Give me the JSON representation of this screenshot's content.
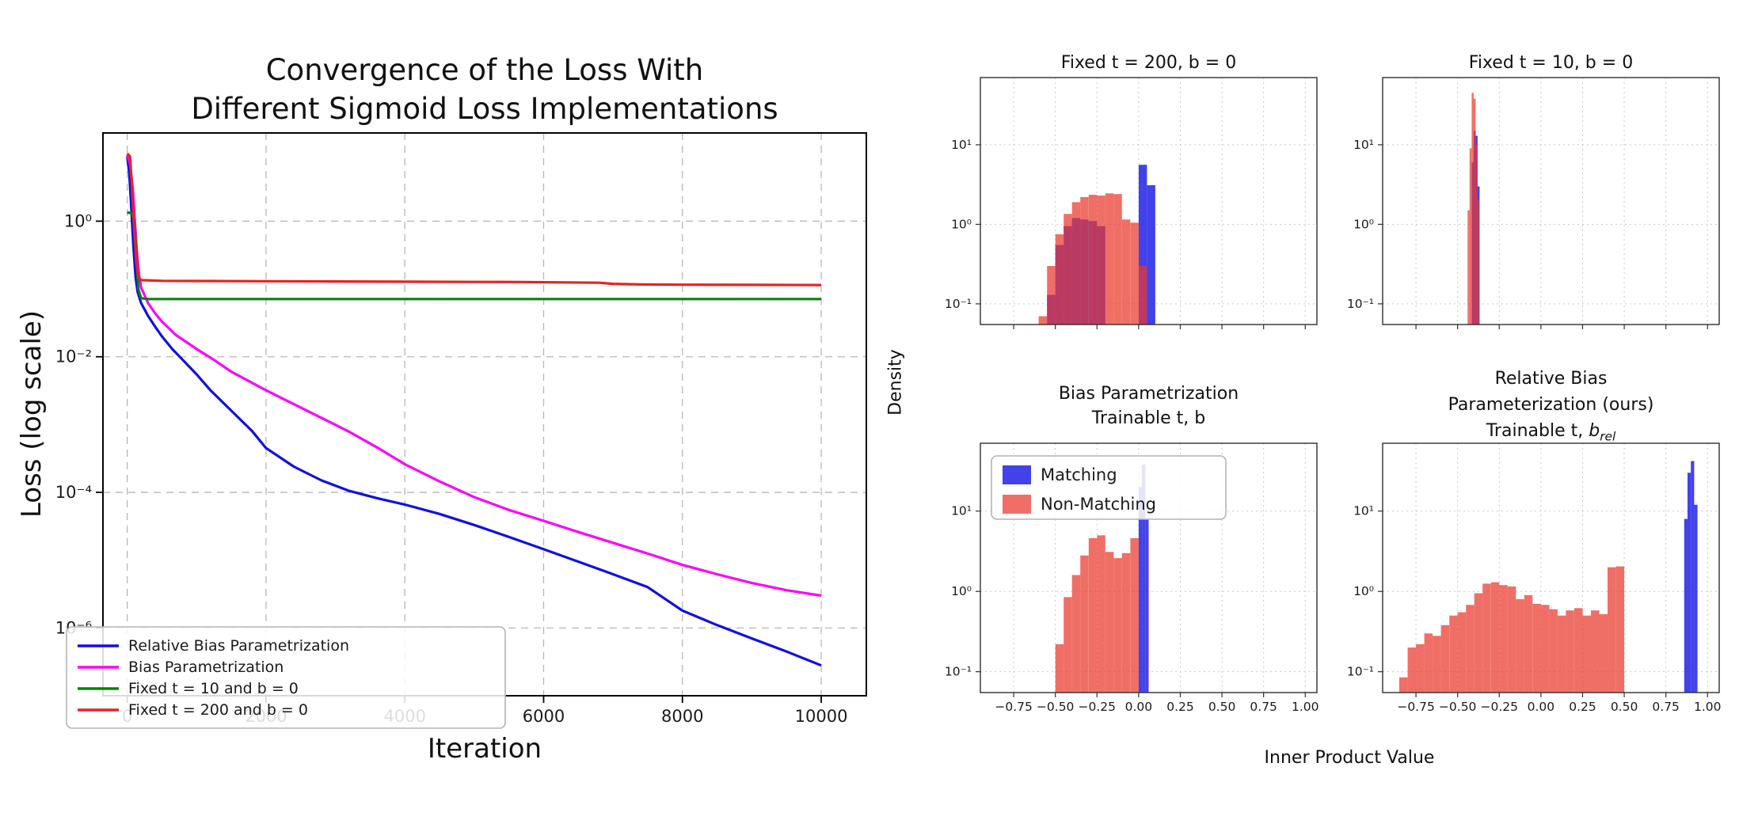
{
  "right_figure": {
    "ylabel": "Density",
    "xlabel": "Inner Product Value"
  },
  "chart_data": [
    {
      "type": "line",
      "title_lines": [
        "Convergence of the Loss With",
        "Different Sigmoid Loss Implementations"
      ],
      "xlabel": "Iteration",
      "ylabel": "Loss (log scale)",
      "xlim": [
        -350,
        10650
      ],
      "ylim": [
        1e-07,
        20
      ],
      "yscale": "log",
      "grid": "dashed",
      "legend": true,
      "legend_loc": "lower left",
      "xticks": [
        {
          "v": 0,
          "label": "0"
        },
        {
          "v": 2000,
          "label": "2000"
        },
        {
          "v": 4000,
          "label": "4000"
        },
        {
          "v": 6000,
          "label": "6000"
        },
        {
          "v": 8000,
          "label": "8000"
        },
        {
          "v": 10000,
          "label": "10000"
        }
      ],
      "yticks": [
        {
          "v": 1,
          "label": "10⁰"
        },
        {
          "v": 0.01,
          "label": "10⁻²"
        },
        {
          "v": 0.0001,
          "label": "10⁻⁴"
        },
        {
          "v": 1e-06,
          "label": "10⁻⁶"
        }
      ],
      "series": [
        {
          "name": "Relative Bias Parametrization",
          "color": "#0f0fe8",
          "points": [
            [
              0,
              9
            ],
            [
              30,
              5
            ],
            [
              60,
              1.5
            ],
            [
              90,
              0.4
            ],
            [
              120,
              0.15
            ],
            [
              150,
              0.09
            ],
            [
              200,
              0.062
            ],
            [
              300,
              0.04
            ],
            [
              400,
              0.028
            ],
            [
              500,
              0.02
            ],
            [
              650,
              0.013
            ],
            [
              800,
              0.009
            ],
            [
              1000,
              0.0055
            ],
            [
              1200,
              0.0032
            ],
            [
              1500,
              0.0016
            ],
            [
              1800,
              0.0008
            ],
            [
              2000,
              0.00045
            ],
            [
              2400,
              0.00024
            ],
            [
              2800,
              0.00015
            ],
            [
              3200,
              0.000105
            ],
            [
              3600,
              8.2e-05
            ],
            [
              4000,
              6.6e-05
            ],
            [
              4500,
              4.8e-05
            ],
            [
              5000,
              3.3e-05
            ],
            [
              5500,
              2.2e-05
            ],
            [
              6000,
              1.45e-05
            ],
            [
              6500,
              9.5e-06
            ],
            [
              7000,
              6.2e-06
            ],
            [
              7500,
              4e-06
            ],
            [
              8000,
              1.8e-06
            ],
            [
              8500,
              1.1e-06
            ],
            [
              9000,
              7e-07
            ],
            [
              9500,
              4.5e-07
            ],
            [
              10000,
              2.8e-07
            ]
          ]
        },
        {
          "name": "Bias Parametrization",
          "color": "#fb02fb",
          "points": [
            [
              0,
              9.5
            ],
            [
              40,
              7
            ],
            [
              80,
              3
            ],
            [
              110,
              1
            ],
            [
              140,
              0.35
            ],
            [
              170,
              0.16
            ],
            [
              200,
              0.105
            ],
            [
              300,
              0.062
            ],
            [
              400,
              0.044
            ],
            [
              500,
              0.033
            ],
            [
              700,
              0.021
            ],
            [
              1000,
              0.013
            ],
            [
              1250,
              0.009
            ],
            [
              1500,
              0.006
            ],
            [
              1750,
              0.0044
            ],
            [
              2000,
              0.0032
            ],
            [
              2400,
              0.002
            ],
            [
              2800,
              0.00125
            ],
            [
              3200,
              0.00078
            ],
            [
              3600,
              0.00046
            ],
            [
              4000,
              0.00026
            ],
            [
              4500,
              0.000145
            ],
            [
              5000,
              8.5e-05
            ],
            [
              5500,
              5.5e-05
            ],
            [
              6000,
              3.8e-05
            ],
            [
              6500,
              2.6e-05
            ],
            [
              7000,
              1.8e-05
            ],
            [
              7500,
              1.25e-05
            ],
            [
              8000,
              8.5e-06
            ],
            [
              8500,
              6.2e-06
            ],
            [
              9000,
              4.6e-06
            ],
            [
              9500,
              3.6e-06
            ],
            [
              10000,
              3e-06
            ]
          ]
        },
        {
          "name": "Fixed t = 10 and b = 0",
          "color": "#0b800b",
          "points": [
            [
              0,
              1.35
            ],
            [
              70,
              1.3
            ],
            [
              100,
              1.0
            ],
            [
              130,
              0.35
            ],
            [
              160,
              0.1
            ],
            [
              200,
              0.073
            ],
            [
              300,
              0.071
            ],
            [
              2000,
              0.071
            ],
            [
              5000,
              0.071
            ],
            [
              10000,
              0.071
            ]
          ]
        },
        {
          "name": "Fixed t = 200 and b = 0",
          "color": "#e52420",
          "points": [
            [
              0,
              10
            ],
            [
              40,
              9
            ],
            [
              70,
              3
            ],
            [
              100,
              0.8
            ],
            [
              130,
              0.25
            ],
            [
              160,
              0.15
            ],
            [
              200,
              0.135
            ],
            [
              500,
              0.132
            ],
            [
              1000,
              0.131
            ],
            [
              2000,
              0.13
            ],
            [
              3000,
              0.129
            ],
            [
              4000,
              0.128
            ],
            [
              5000,
              0.127
            ],
            [
              5700,
              0.1265
            ],
            [
              6300,
              0.125
            ],
            [
              6800,
              0.1235
            ],
            [
              7000,
              0.119
            ],
            [
              7400,
              0.1165
            ],
            [
              8000,
              0.1155
            ],
            [
              9000,
              0.115
            ],
            [
              10000,
              0.1145
            ]
          ]
        }
      ]
    },
    {
      "type": "histogram",
      "title_lines": [
        "Fixed t = 200, b = 0"
      ],
      "xlim": [
        -0.95,
        1.07
      ],
      "ylim": [
        0.055,
        70
      ],
      "yscale": "log",
      "show_xticklabels": false,
      "legend": false,
      "xticks": [
        {
          "v": -0.75,
          "label": "−0.75"
        },
        {
          "v": -0.5,
          "label": "−0.50"
        },
        {
          "v": -0.25,
          "label": "−0.25"
        },
        {
          "v": 0.0,
          "label": "0.00"
        },
        {
          "v": 0.25,
          "label": "0.25"
        },
        {
          "v": 0.5,
          "label": "0.50"
        },
        {
          "v": 0.75,
          "label": "0.75"
        },
        {
          "v": 1.0,
          "label": "1.00"
        }
      ],
      "yticks": [
        {
          "v": 0.1,
          "label": "10⁻¹"
        },
        {
          "v": 1,
          "label": "10⁰"
        },
        {
          "v": 10,
          "label": "10¹"
        }
      ],
      "series": [
        {
          "name": "Matching",
          "color": "rgba(25,25,230,0.82)",
          "bin_width": 0.05,
          "bars": [
            [
              -0.55,
              0.13
            ],
            [
              -0.5,
              0.55
            ],
            [
              -0.45,
              0.95
            ],
            [
              -0.4,
              1.2
            ],
            [
              -0.35,
              1.15
            ],
            [
              -0.3,
              1.1
            ],
            [
              -0.25,
              0.95
            ],
            [
              0.0,
              5.6
            ],
            [
              0.05,
              3.1
            ]
          ]
        },
        {
          "name": "Non-Matching",
          "color": "rgba(233,55,45,0.72)",
          "bin_width": 0.05,
          "bars": [
            [
              -0.6,
              0.07
            ],
            [
              -0.55,
              0.3
            ],
            [
              -0.5,
              0.75
            ],
            [
              -0.45,
              1.35
            ],
            [
              -0.4,
              1.9
            ],
            [
              -0.35,
              2.2
            ],
            [
              -0.3,
              2.35
            ],
            [
              -0.25,
              2.3
            ],
            [
              -0.2,
              2.45
            ],
            [
              -0.15,
              2.4
            ],
            [
              -0.1,
              1.15
            ],
            [
              -0.05,
              1.05
            ],
            [
              0.0,
              0.3
            ]
          ]
        }
      ]
    },
    {
      "type": "histogram",
      "title_lines": [
        "Fixed t = 10, b = 0"
      ],
      "xlim": [
        -0.95,
        1.07
      ],
      "ylim": [
        0.055,
        70
      ],
      "yscale": "log",
      "show_xticklabels": false,
      "legend": false,
      "xticks": [
        {
          "v": -0.75,
          "label": "−0.75"
        },
        {
          "v": -0.5,
          "label": "−0.50"
        },
        {
          "v": -0.25,
          "label": "−0.25"
        },
        {
          "v": 0.0,
          "label": "0.00"
        },
        {
          "v": 0.25,
          "label": "0.25"
        },
        {
          "v": 0.5,
          "label": "0.50"
        },
        {
          "v": 0.75,
          "label": "0.75"
        },
        {
          "v": 1.0,
          "label": "1.00"
        }
      ],
      "yticks": [
        {
          "v": 0.1,
          "label": "10⁻¹"
        },
        {
          "v": 1,
          "label": "10⁰"
        },
        {
          "v": 10,
          "label": "10¹"
        }
      ],
      "series": [
        {
          "name": "Matching",
          "color": "rgba(25,25,230,0.82)",
          "bin_width": 0.012,
          "bars": [
            [
              -0.416,
              6
            ],
            [
              -0.404,
              15
            ],
            [
              -0.392,
              13
            ],
            [
              -0.38,
              3
            ]
          ]
        },
        {
          "name": "Non-Matching",
          "color": "rgba(233,55,45,0.72)",
          "bin_width": 0.012,
          "bars": [
            [
              -0.44,
              1.5
            ],
            [
              -0.428,
              9
            ],
            [
              -0.416,
              45
            ],
            [
              -0.404,
              38
            ],
            [
              -0.392,
              10
            ],
            [
              -0.38,
              2
            ]
          ]
        }
      ]
    },
    {
      "type": "histogram",
      "title_lines": [
        "Bias Parametrization",
        "Trainable t, b"
      ],
      "xlim": [
        -0.95,
        1.07
      ],
      "ylim": [
        0.055,
        70
      ],
      "yscale": "log",
      "show_xticklabels": true,
      "legend": true,
      "xticks": [
        {
          "v": -0.75,
          "label": "−0.75"
        },
        {
          "v": -0.5,
          "label": "−0.50"
        },
        {
          "v": -0.25,
          "label": "−0.25"
        },
        {
          "v": 0.0,
          "label": "0.00"
        },
        {
          "v": 0.25,
          "label": "0.25"
        },
        {
          "v": 0.5,
          "label": "0.50"
        },
        {
          "v": 0.75,
          "label": "0.75"
        },
        {
          "v": 1.0,
          "label": "1.00"
        }
      ],
      "yticks": [
        {
          "v": 0.1,
          "label": "10⁻¹"
        },
        {
          "v": 1,
          "label": "10⁰"
        },
        {
          "v": 10,
          "label": "10¹"
        }
      ],
      "series": [
        {
          "name": "Matching",
          "color": "rgba(25,25,230,0.82)",
          "bin_width": 0.02,
          "bars": [
            [
              0.0,
              20
            ],
            [
              0.02,
              38
            ],
            [
              0.04,
              8
            ]
          ]
        },
        {
          "name": "Non-Matching",
          "color": "rgba(233,55,45,0.72)",
          "bin_width": 0.05,
          "bars": [
            [
              -0.5,
              0.22
            ],
            [
              -0.45,
              0.85
            ],
            [
              -0.4,
              1.6
            ],
            [
              -0.35,
              2.8
            ],
            [
              -0.3,
              4.6
            ],
            [
              -0.25,
              5.0
            ],
            [
              -0.2,
              3.1
            ],
            [
              -0.15,
              2.6
            ],
            [
              -0.1,
              3.0
            ],
            [
              -0.05,
              4.6
            ]
          ]
        }
      ]
    },
    {
      "type": "histogram",
      "title_lines": [
        "Relative Bias",
        "Parameterization (ours)"
      ],
      "title_line3_parts": {
        "prefix": "Trainable t, ",
        "var": "b",
        "sub": "rel"
      },
      "xlim": [
        -0.95,
        1.07
      ],
      "ylim": [
        0.055,
        70
      ],
      "yscale": "log",
      "show_xticklabels": true,
      "legend": false,
      "xticks": [
        {
          "v": -0.75,
          "label": "−0.75"
        },
        {
          "v": -0.5,
          "label": "−0.50"
        },
        {
          "v": -0.25,
          "label": "−0.25"
        },
        {
          "v": 0.0,
          "label": "0.00"
        },
        {
          "v": 0.25,
          "label": "0.25"
        },
        {
          "v": 0.5,
          "label": "0.50"
        },
        {
          "v": 0.75,
          "label": "0.75"
        },
        {
          "v": 1.0,
          "label": "1.00"
        }
      ],
      "yticks": [
        {
          "v": 0.1,
          "label": "10⁻¹"
        },
        {
          "v": 1,
          "label": "10⁰"
        },
        {
          "v": 10,
          "label": "10¹"
        }
      ],
      "series": [
        {
          "name": "Matching",
          "color": "rgba(25,25,230,0.82)",
          "bin_width": 0.02,
          "bars": [
            [
              0.86,
              8
            ],
            [
              0.88,
              30
            ],
            [
              0.9,
              42
            ],
            [
              0.92,
              12
            ]
          ]
        },
        {
          "name": "Non-Matching",
          "color": "rgba(233,55,45,0.72)",
          "bin_width": 0.05,
          "bars": [
            [
              -0.85,
              0.085
            ],
            [
              -0.8,
              0.2
            ],
            [
              -0.75,
              0.22
            ],
            [
              -0.7,
              0.3
            ],
            [
              -0.65,
              0.28
            ],
            [
              -0.6,
              0.38
            ],
            [
              -0.55,
              0.5
            ],
            [
              -0.5,
              0.55
            ],
            [
              -0.45,
              0.68
            ],
            [
              -0.4,
              0.95
            ],
            [
              -0.35,
              1.25
            ],
            [
              -0.3,
              1.3
            ],
            [
              -0.25,
              1.2
            ],
            [
              -0.2,
              1.15
            ],
            [
              -0.15,
              0.8
            ],
            [
              -0.1,
              0.9
            ],
            [
              -0.05,
              0.7
            ],
            [
              0.0,
              0.68
            ],
            [
              0.05,
              0.6
            ],
            [
              0.1,
              0.5
            ],
            [
              0.15,
              0.58
            ],
            [
              0.2,
              0.62
            ],
            [
              0.25,
              0.5
            ],
            [
              0.3,
              0.58
            ],
            [
              0.35,
              0.52
            ],
            [
              0.4,
              2.0
            ],
            [
              0.45,
              2.05
            ]
          ]
        }
      ]
    }
  ]
}
